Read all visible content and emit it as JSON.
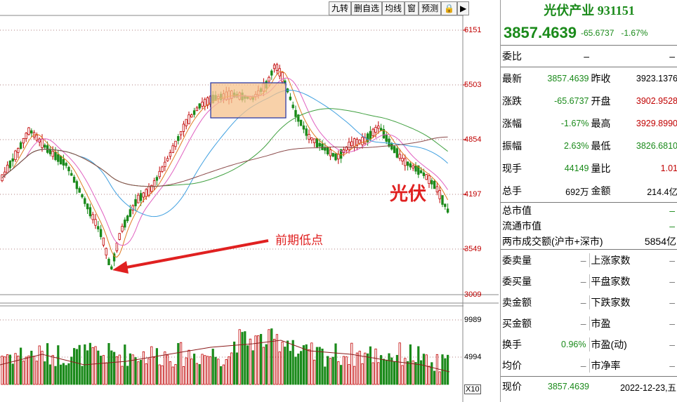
{
  "toolbar": [
    "九转",
    "删自选",
    "均线",
    "窗",
    "预测",
    "🔒",
    "▶"
  ],
  "price_axis": [
    "6151",
    "5503",
    "4854",
    "4197",
    "3549",
    "3009"
  ],
  "volume_axis": [
    "9989",
    "4994",
    "X10"
  ],
  "annotations": {
    "low_point": "前期低点",
    "sector": "光伏"
  },
  "colors": {
    "up": "#c00000",
    "down": "#1a8a1a",
    "box": "#f6c28c"
  },
  "quote": {
    "title": "光伏产业 931151",
    "price": "3857.4639",
    "change": "-65.6737",
    "change_pct": "-1.67%",
    "weibi_label": "委比",
    "weibi_value": "–",
    "weibi_value2": "–",
    "rows": [
      {
        "l": "最新",
        "lv": "3857.4639",
        "r": "昨收",
        "rv": "3923.1376"
      },
      {
        "l": "涨跌",
        "lv": "-65.6737",
        "r": "开盘",
        "rv": "3902.9528"
      },
      {
        "l": "涨幅",
        "lv": "-1.67%",
        "r": "最高",
        "rv": "3929.8990"
      },
      {
        "l": "振幅",
        "lv": "2.63%",
        "r": "最低",
        "rv": "3826.6810"
      },
      {
        "l": "现手",
        "lv": "44149",
        "r": "量比",
        "rv": "1.01"
      },
      {
        "l": "总手",
        "lv": "692万",
        "r": "金额",
        "rv": "214.4亿"
      }
    ],
    "cap_total": "总市值",
    "cap_float": "流通市值",
    "turnover_label": "两市成交额(沪市+深市)",
    "turnover_value": "5854亿",
    "pairs": [
      {
        "l": "委卖量",
        "r": "上涨家数"
      },
      {
        "l": "委买量",
        "r": "平盘家数"
      },
      {
        "l": "卖金额",
        "r": "下跌家数"
      },
      {
        "l": "买金额",
        "r": "市盈"
      },
      {
        "l": "换手",
        "lv": "0.96%",
        "r": "市盈(动)"
      },
      {
        "l": "均价",
        "r": "市净率"
      }
    ],
    "bottom_label": "现价",
    "bottom_price": "3857.4639",
    "bottom_date": "2022-12-23,五"
  }
}
